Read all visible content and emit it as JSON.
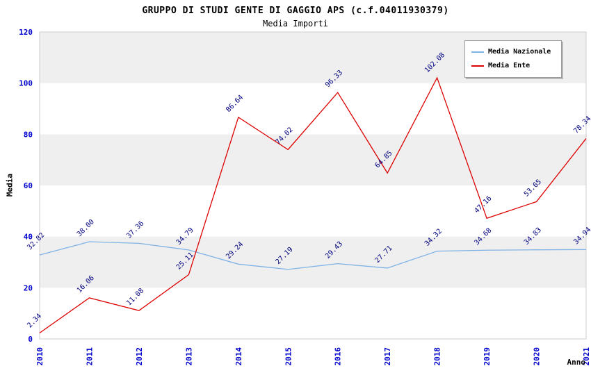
{
  "title": "GRUPPO DI STUDI GENTE DI GAGGIO APS (c.f.04011930379)",
  "subtitle": "Media Importi",
  "chart_data": {
    "type": "line",
    "categories": [
      "2010",
      "2011",
      "2012",
      "2013",
      "2014",
      "2015",
      "2016",
      "2017",
      "2018",
      "2019",
      "2020",
      "2021"
    ],
    "series": [
      {
        "name": "Media Nazionale",
        "color": "#7fb2e5",
        "values": [
          32.82,
          38.0,
          37.36,
          34.79,
          29.24,
          27.19,
          29.43,
          27.71,
          34.32,
          34.68,
          34.83,
          34.94
        ]
      },
      {
        "name": "Media Ente",
        "color": "#dd0000",
        "values": [
          2.34,
          16.06,
          11.08,
          25.11,
          86.64,
          74.02,
          96.33,
          64.85,
          102.08,
          47.16,
          53.65,
          78.34
        ]
      }
    ],
    "title": "GRUPPO DI STUDI GENTE DI GAGGIO APS (c.f.04011930379)",
    "subtitle": "Media Importi",
    "xlabel": "Anno",
    "ylabel": "Media",
    "ylim": [
      0,
      120
    ],
    "yticks": [
      0,
      20,
      40,
      60,
      80,
      100,
      120
    ],
    "grid": "banded",
    "band_colors": [
      "#ffffff",
      "#efefef"
    ],
    "plot_border_color": "#cccccc",
    "tick_label_color": "#0000cc",
    "point_label_color": "#000080",
    "legend_position": "top-right",
    "label_decimals": 2
  }
}
